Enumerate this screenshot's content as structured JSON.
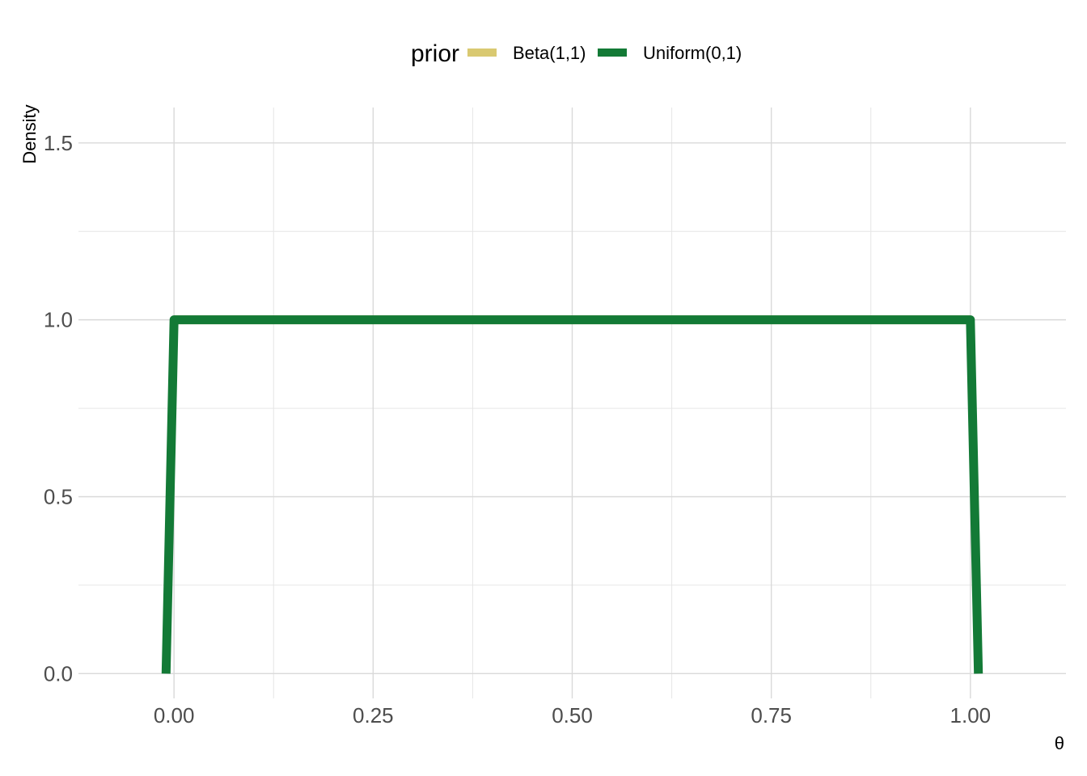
{
  "chart_data": {
    "type": "line",
    "xlabel": "θ",
    "ylabel": "Density",
    "xlim": [
      -0.12,
      1.12
    ],
    "ylim": [
      -0.07,
      1.6
    ],
    "x_ticks": [
      0,
      0.25,
      0.5,
      0.75,
      1.0
    ],
    "x_tick_labels": [
      "0.00",
      "0.25",
      "0.50",
      "0.75",
      "1.00"
    ],
    "y_ticks": [
      0,
      0.5,
      1.0,
      1.5
    ],
    "y_tick_labels": [
      "0.0",
      "0.5",
      "1.0",
      "1.5"
    ],
    "grid": true,
    "legend": {
      "title": "prior",
      "position": "top",
      "entries": [
        {
          "label": "Beta(1,1)",
          "color": "#d9c971"
        },
        {
          "label": "Uniform(0,1)",
          "color": "#137a36"
        }
      ]
    },
    "series": [
      {
        "name": "Beta(1,1)",
        "color": "#d9c971",
        "x": [
          0.0,
          0.25,
          0.5,
          0.75,
          1.0
        ],
        "y": [
          1,
          1,
          1,
          1,
          1
        ]
      },
      {
        "name": "Uniform(0,1)",
        "color": "#137a36",
        "x": [
          -0.01,
          0.0,
          0.25,
          0.5,
          0.75,
          1.0,
          1.01
        ],
        "y": [
          0,
          1,
          1,
          1,
          1,
          1,
          0
        ]
      }
    ]
  }
}
